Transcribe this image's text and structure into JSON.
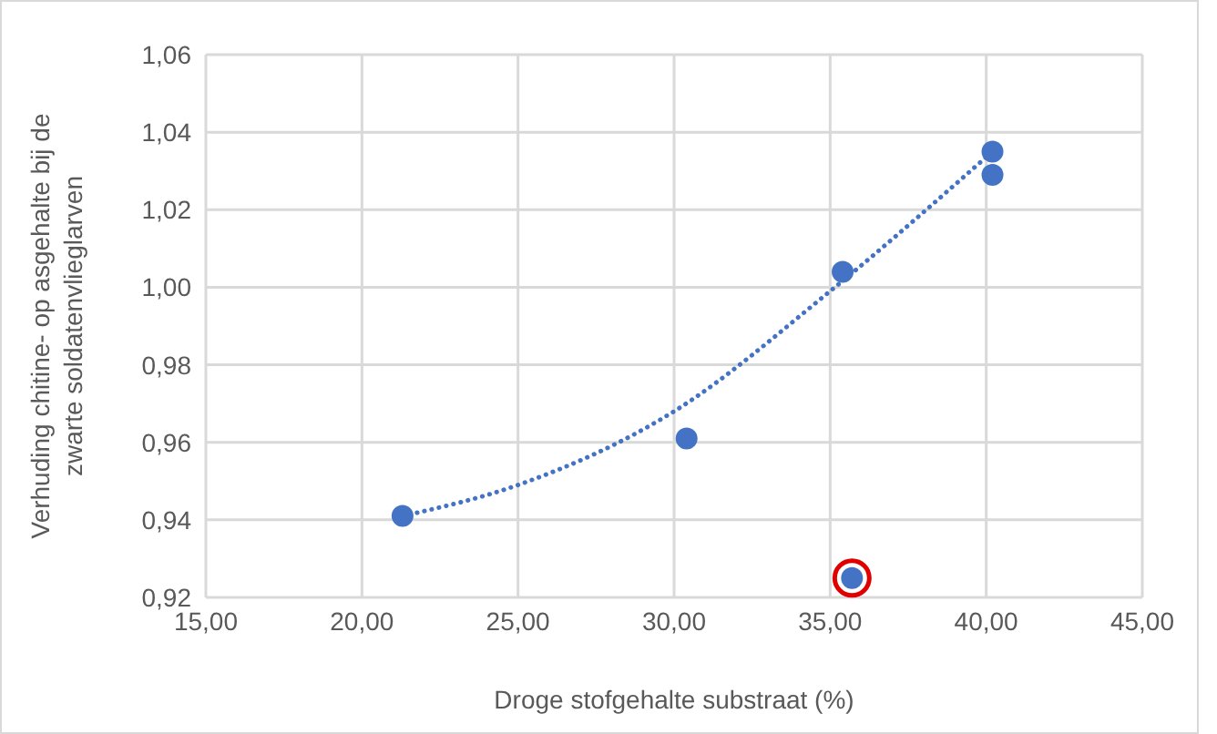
{
  "chart_data": {
    "type": "scatter",
    "xlabel": "Droge stofgehalte substraat (%)",
    "ylabel": "Verhuding chitine- op asgehalte bij de zwarte soldatenvlieglarven",
    "xlim": [
      15,
      45
    ],
    "xticks": [
      {
        "value": 15,
        "label": "15,00"
      },
      {
        "value": 20,
        "label": "20,00"
      },
      {
        "value": 25,
        "label": "25,00"
      },
      {
        "value": 30,
        "label": "30,00"
      },
      {
        "value": 35,
        "label": "35,00"
      },
      {
        "value": 40,
        "label": "40,00"
      },
      {
        "value": 45,
        "label": "45,00"
      }
    ],
    "ylim": [
      0.92,
      1.06
    ],
    "yticks": [
      {
        "value": 0.92,
        "label": "0,92"
      },
      {
        "value": 0.94,
        "label": "0,94"
      },
      {
        "value": 0.96,
        "label": "0,96"
      },
      {
        "value": 0.98,
        "label": "0,98"
      },
      {
        "value": 1.0,
        "label": "1,00"
      },
      {
        "value": 1.02,
        "label": "1,02"
      },
      {
        "value": 1.04,
        "label": "1,04"
      },
      {
        "value": 1.06,
        "label": "1,06"
      }
    ],
    "grid": true,
    "series": [
      {
        "color": "#4472c4",
        "marker": "circle",
        "x": [
          21.3,
          30.4,
          35.4,
          35.7,
          40.2,
          40.2
        ],
        "values": [
          0.941,
          0.961,
          1.004,
          0.925,
          1.035,
          1.029
        ]
      },
      {
        "type": "line",
        "color": "#4472c4",
        "marker": "none",
        "line_style": "dotted",
        "x": [
          21.3,
          25,
          30,
          35,
          40.2
        ],
        "values": [
          0.941,
          0.949,
          0.968,
          0.999,
          1.035
        ]
      }
    ]
  }
}
